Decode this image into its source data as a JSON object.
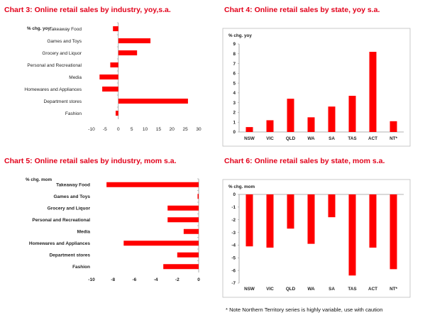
{
  "note": "* Note Northern Territory series is highly variable, use with caution",
  "chart_data": [
    {
      "type": "bar",
      "orientation": "horizontal",
      "title": "Chart 3: Online retail sales by industry, yoy,s.a.",
      "ylabel": "% chg. yoy",
      "categories": [
        "Takeaway Food",
        "Games and Toys",
        "Grocery and Liquor",
        "Personal and Recreational",
        "Media",
        "Homewares and Appliances",
        "Department stores",
        "Fashion"
      ],
      "values": [
        -2,
        12,
        7,
        -3,
        -7,
        -6,
        26,
        -1
      ],
      "xlim": [
        -10,
        30
      ],
      "ticks": [
        -10,
        -5,
        0,
        5,
        10,
        15,
        20,
        25,
        30
      ],
      "color": "#ff0000",
      "label_weight": "normal"
    },
    {
      "type": "bar",
      "orientation": "vertical",
      "title": "Chart 4: Online retail sales by state, yoy s.a.",
      "ylabel": "% chg. yoy",
      "categories": [
        "NSW",
        "VIC",
        "QLD",
        "WA",
        "SA",
        "TAS",
        "ACT",
        "NT*"
      ],
      "values": [
        0.5,
        1.2,
        3.4,
        1.5,
        2.6,
        3.7,
        8.2,
        1.1
      ],
      "ylim": [
        0,
        9
      ],
      "ticks": [
        0,
        1,
        2,
        3,
        4,
        5,
        6,
        7,
        8,
        9
      ],
      "color": "#ff0000"
    },
    {
      "type": "bar",
      "orientation": "horizontal",
      "title": "Chart 5: Online retail sales by industry, mom s.a.",
      "ylabel": "% chg. mom",
      "categories": [
        "Takeaway Food",
        "Games and Toys",
        "Grocery and Liquor",
        "Personal and Recreational",
        "Media",
        "Homewares and Appliances",
        "Department stores",
        "Fashion"
      ],
      "values": [
        -8.6,
        -0.1,
        -2.9,
        -2.9,
        -1.4,
        -7.0,
        -2.0,
        -3.3
      ],
      "xlim": [
        -10,
        0
      ],
      "ticks": [
        -10,
        -8,
        -6,
        -4,
        -2,
        0
      ],
      "color": "#ff0000",
      "label_weight": "bold"
    },
    {
      "type": "bar",
      "orientation": "vertical",
      "title": "Chart 6: Online retail sales by state, mom s.a.",
      "ylabel": "% chg. mom",
      "categories": [
        "NSW",
        "VIC",
        "QLD",
        "WA",
        "SA",
        "TAS",
        "ACT",
        "NT*"
      ],
      "values": [
        -4.1,
        -4.2,
        -2.7,
        -3.9,
        -1.8,
        -6.4,
        -4.2,
        -5.9
      ],
      "ylim": [
        -7,
        0
      ],
      "ticks": [
        0,
        -1,
        -2,
        -3,
        -4,
        -5,
        -6,
        -7
      ],
      "color": "#ff0000"
    }
  ]
}
